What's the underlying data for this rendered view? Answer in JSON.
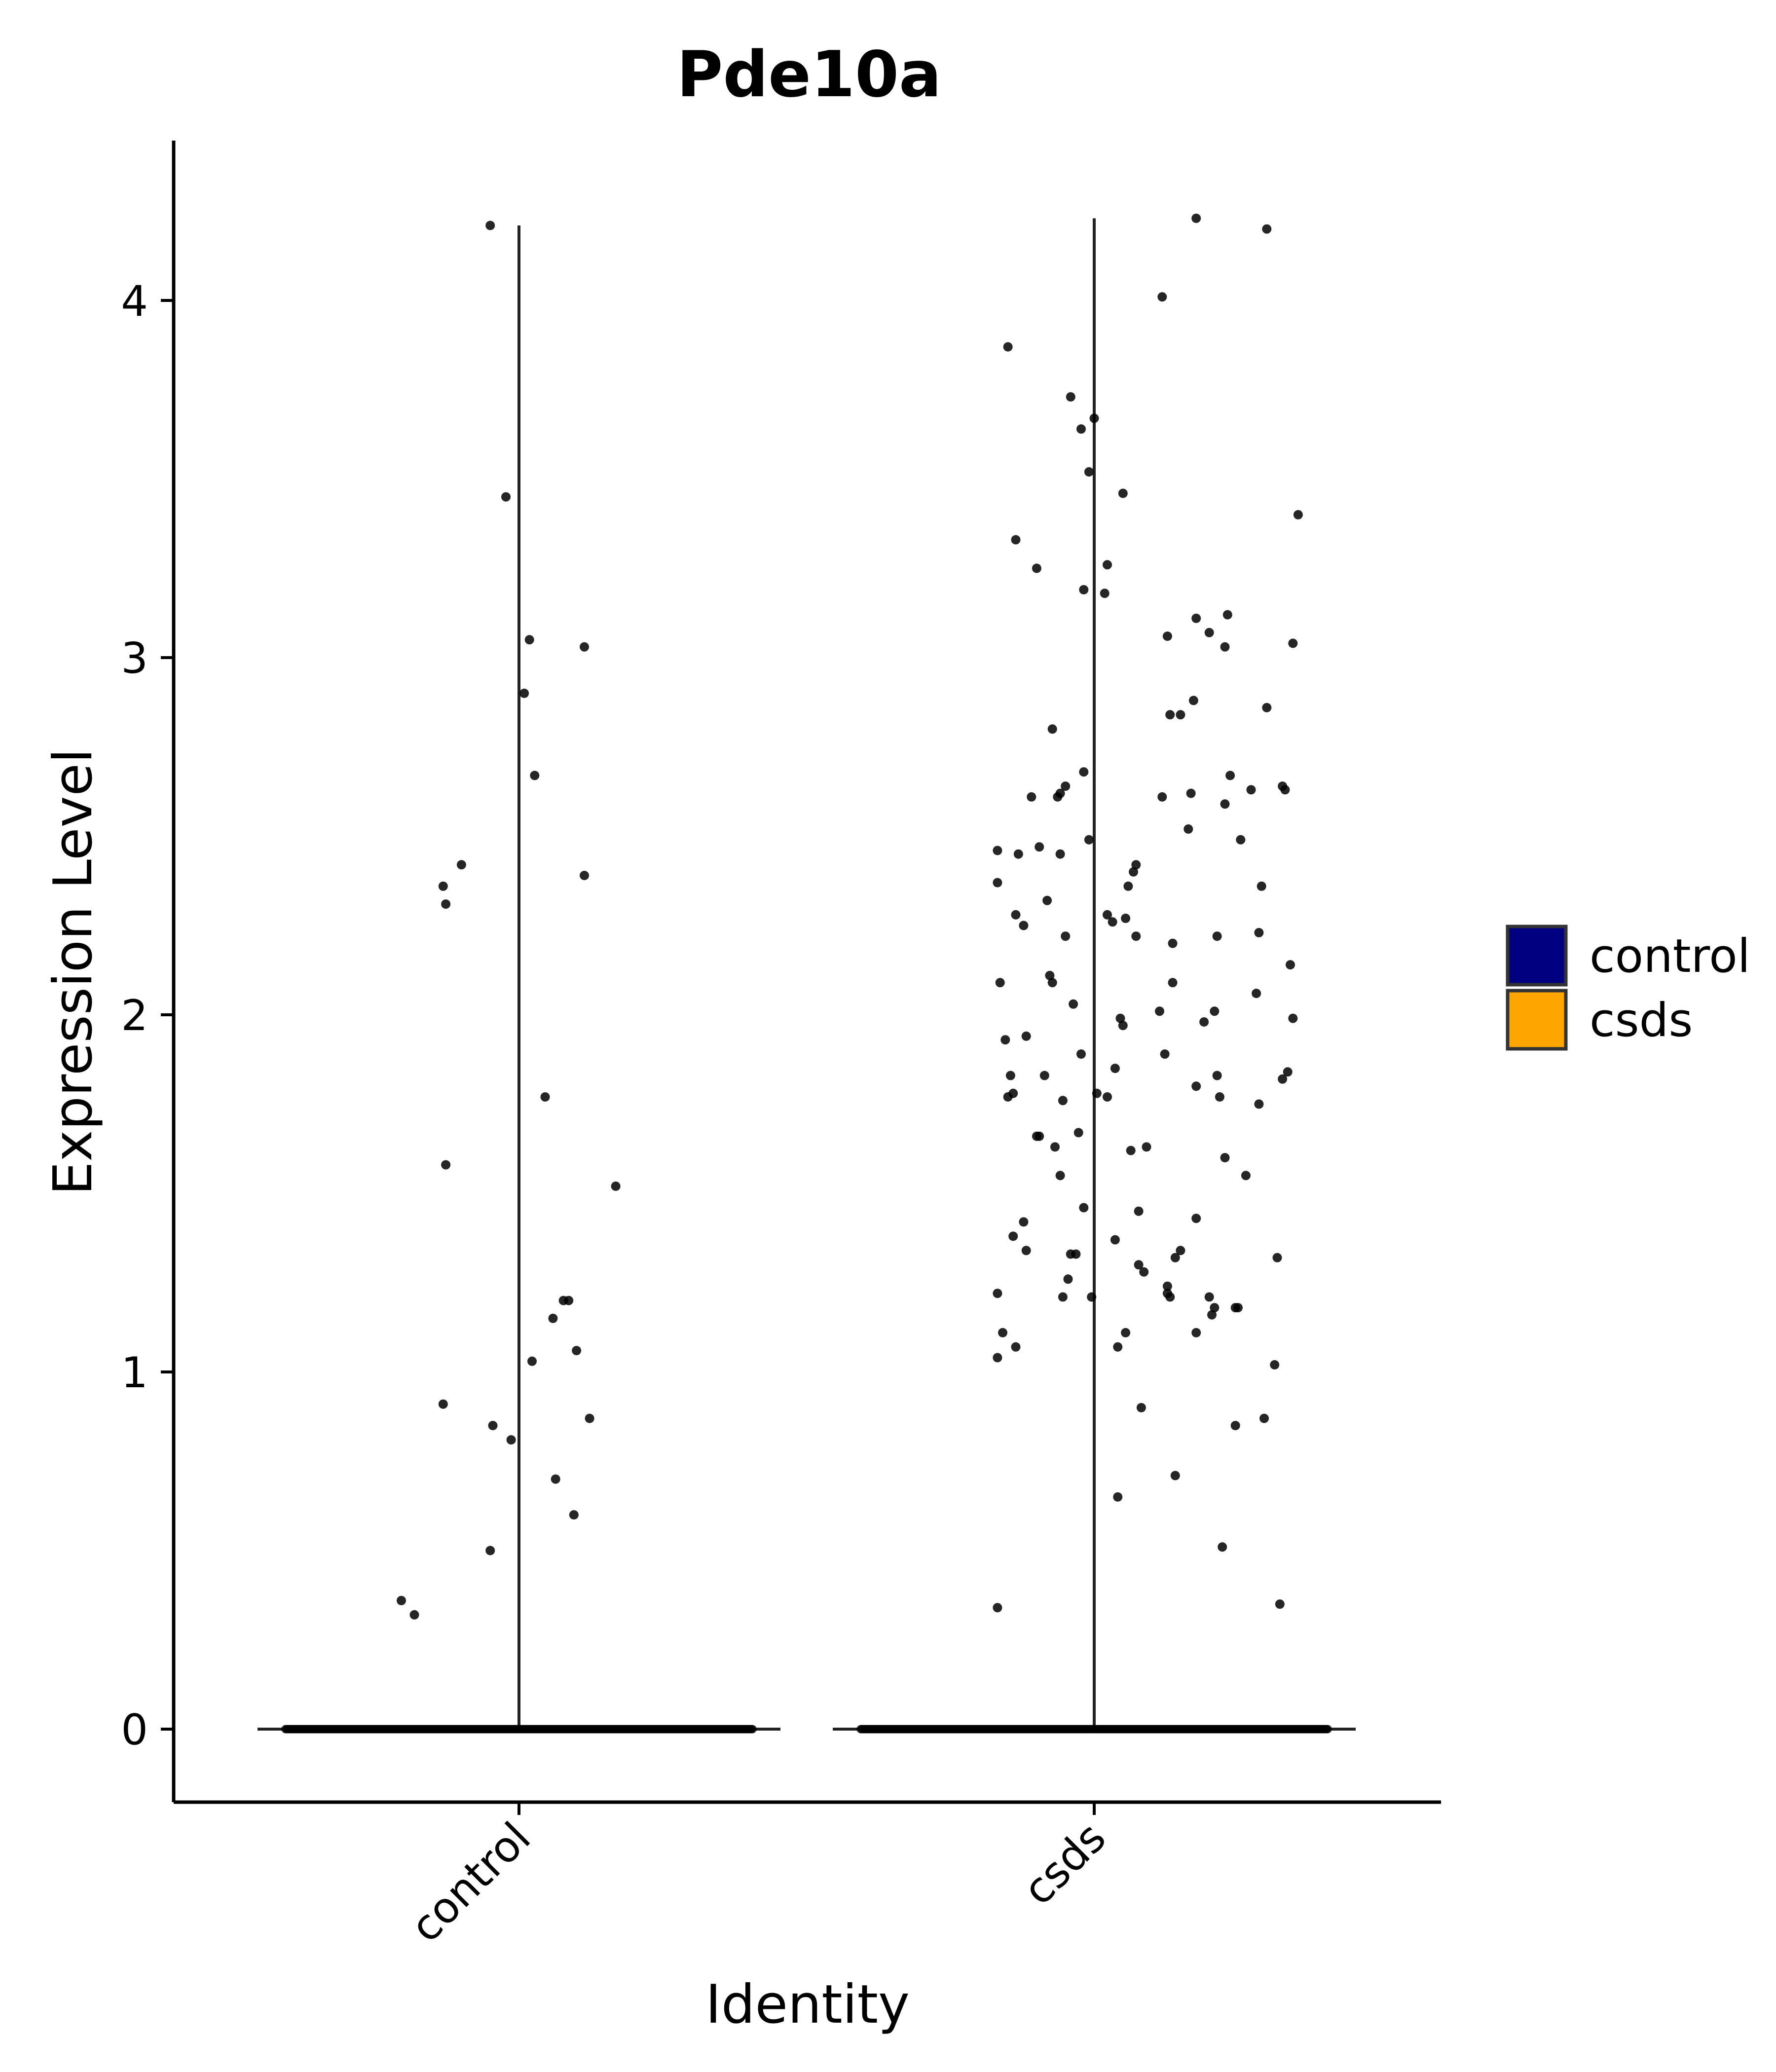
{
  "chart_data": {
    "type": "scatter",
    "subtype": "violin-jitter",
    "title": "Pde10a",
    "xlabel": "Identity",
    "ylabel": "Expression Level",
    "categories": [
      "control",
      "csds"
    ],
    "ylim": [
      -0.21,
      4.43
    ],
    "yticks": [
      0,
      1,
      2,
      3,
      4
    ],
    "grid": false,
    "legend": {
      "position": "right",
      "title": "",
      "items": [
        {
          "label": "control",
          "color": "#000080"
        },
        {
          "label": "csds",
          "color": "#FFA500"
        }
      ]
    },
    "violin_max": [
      4.21,
      4.23
    ],
    "series": [
      {
        "name": "control",
        "color": "#000080",
        "zero_count": 400,
        "points": [
          [
            -0.45,
            0.36
          ],
          [
            -0.4,
            0.32
          ],
          [
            -0.29,
            2.36
          ],
          [
            -0.28,
            2.31
          ],
          [
            -0.28,
            1.58
          ],
          [
            -0.29,
            0.91
          ],
          [
            -0.22,
            2.42
          ],
          [
            -0.11,
            4.21
          ],
          [
            -0.1,
            0.85
          ],
          [
            -0.11,
            0.5
          ],
          [
            -0.05,
            3.45
          ],
          [
            -0.03,
            0.81
          ],
          [
            0.02,
            2.9
          ],
          [
            0.04,
            3.05
          ],
          [
            0.05,
            1.03
          ],
          [
            0.06,
            2.67
          ],
          [
            0.1,
            1.77
          ],
          [
            0.13,
            1.15
          ],
          [
            0.14,
            0.7
          ],
          [
            0.17,
            1.2
          ],
          [
            0.19,
            1.2
          ],
          [
            0.21,
            0.6
          ],
          [
            0.22,
            1.06
          ],
          [
            0.25,
            3.03
          ],
          [
            0.25,
            2.39
          ],
          [
            0.27,
            0.87
          ],
          [
            0.37,
            1.52
          ]
        ]
      },
      {
        "name": "csds",
        "color": "#FFA500",
        "zero_count": 400,
        "points": [
          [
            -0.37,
            0.34
          ],
          [
            -0.37,
            1.04
          ],
          [
            -0.37,
            1.22
          ],
          [
            -0.35,
            1.11
          ],
          [
            -0.37,
            2.37
          ],
          [
            -0.37,
            2.46
          ],
          [
            -0.36,
            2.09
          ],
          [
            -0.34,
            1.93
          ],
          [
            -0.33,
            1.77
          ],
          [
            -0.33,
            3.87
          ],
          [
            -0.31,
            1.78
          ],
          [
            -0.32,
            1.83
          ],
          [
            -0.31,
            1.38
          ],
          [
            -0.3,
            1.07
          ],
          [
            -0.3,
            3.33
          ],
          [
            -0.3,
            2.28
          ],
          [
            -0.29,
            2.45
          ],
          [
            -0.27,
            1.42
          ],
          [
            -0.26,
            1.34
          ],
          [
            -0.26,
            1.94
          ],
          [
            -0.27,
            2.25
          ],
          [
            -0.24,
            2.61
          ],
          [
            -0.22,
            3.25
          ],
          [
            -0.22,
            1.66
          ],
          [
            -0.21,
            2.47
          ],
          [
            -0.21,
            1.66
          ],
          [
            -0.19,
            1.83
          ],
          [
            -0.18,
            2.32
          ],
          [
            -0.17,
            2.11
          ],
          [
            -0.16,
            2.09
          ],
          [
            -0.16,
            2.8
          ],
          [
            -0.15,
            1.63
          ],
          [
            -0.14,
            2.61
          ],
          [
            -0.13,
            2.62
          ],
          [
            -0.13,
            1.55
          ],
          [
            -0.13,
            2.45
          ],
          [
            -0.12,
            1.21
          ],
          [
            -0.12,
            1.76
          ],
          [
            -0.11,
            2.64
          ],
          [
            -0.11,
            2.22
          ],
          [
            -0.1,
            1.26
          ],
          [
            -0.09,
            1.33
          ],
          [
            -0.09,
            3.73
          ],
          [
            -0.08,
            2.03
          ],
          [
            -0.07,
            1.33
          ],
          [
            -0.06,
            1.67
          ],
          [
            -0.05,
            3.64
          ],
          [
            -0.04,
            2.68
          ],
          [
            -0.04,
            1.46
          ],
          [
            -0.05,
            1.89
          ],
          [
            -0.04,
            3.19
          ],
          [
            -0.02,
            2.49
          ],
          [
            -0.02,
            3.52
          ],
          [
            -0.01,
            1.21
          ],
          [
            0.0,
            3.67
          ],
          [
            0.01,
            1.78
          ],
          [
            0.04,
            3.18
          ],
          [
            0.05,
            1.77
          ],
          [
            0.05,
            2.28
          ],
          [
            0.05,
            3.26
          ],
          [
            0.07,
            2.26
          ],
          [
            0.08,
            1.85
          ],
          [
            0.08,
            1.37
          ],
          [
            0.09,
            0.65
          ],
          [
            0.09,
            1.07
          ],
          [
            0.1,
            1.99
          ],
          [
            0.11,
            1.97
          ],
          [
            0.12,
            2.27
          ],
          [
            0.11,
            3.46
          ],
          [
            0.12,
            1.11
          ],
          [
            0.13,
            2.36
          ],
          [
            0.14,
            1.62
          ],
          [
            0.15,
            2.4
          ],
          [
            0.16,
            2.42
          ],
          [
            0.16,
            2.22
          ],
          [
            0.17,
            1.45
          ],
          [
            0.17,
            1.3
          ],
          [
            0.18,
            0.9
          ],
          [
            0.19,
            1.28
          ],
          [
            0.2,
            1.63
          ],
          [
            0.25,
            2.01
          ],
          [
            0.26,
            2.61
          ],
          [
            0.26,
            4.01
          ],
          [
            0.27,
            1.89
          ],
          [
            0.28,
            1.24
          ],
          [
            0.28,
            3.06
          ],
          [
            0.28,
            1.22
          ],
          [
            0.29,
            1.21
          ],
          [
            0.29,
            2.84
          ],
          [
            0.3,
            2.2
          ],
          [
            0.3,
            2.09
          ],
          [
            0.31,
            0.71
          ],
          [
            0.31,
            1.32
          ],
          [
            0.33,
            1.34
          ],
          [
            0.33,
            2.84
          ],
          [
            0.36,
            2.52
          ],
          [
            0.37,
            2.62
          ],
          [
            0.38,
            2.88
          ],
          [
            0.39,
            1.43
          ],
          [
            0.39,
            1.8
          ],
          [
            0.39,
            1.11
          ],
          [
            0.39,
            4.23
          ],
          [
            0.39,
            3.11
          ],
          [
            0.42,
            1.98
          ],
          [
            0.44,
            1.21
          ],
          [
            0.44,
            3.07
          ],
          [
            0.45,
            1.16
          ],
          [
            0.46,
            1.18
          ],
          [
            0.46,
            2.01
          ],
          [
            0.47,
            1.83
          ],
          [
            0.47,
            2.22
          ],
          [
            0.48,
            1.77
          ],
          [
            0.49,
            0.51
          ],
          [
            0.5,
            1.6
          ],
          [
            0.5,
            2.59
          ],
          [
            0.5,
            3.03
          ],
          [
            0.51,
            3.12
          ],
          [
            0.52,
            2.67
          ],
          [
            0.54,
            0.85
          ],
          [
            0.54,
            1.18
          ],
          [
            0.55,
            1.18
          ],
          [
            0.56,
            2.49
          ],
          [
            0.58,
            1.55
          ],
          [
            0.6,
            2.63
          ],
          [
            0.62,
            2.06
          ],
          [
            0.63,
            2.23
          ],
          [
            0.63,
            1.75
          ],
          [
            0.64,
            2.36
          ],
          [
            0.65,
            0.87
          ],
          [
            0.66,
            2.86
          ],
          [
            0.66,
            4.2
          ],
          [
            0.69,
            1.02
          ],
          [
            0.7,
            1.32
          ],
          [
            0.71,
            0.35
          ],
          [
            0.72,
            1.82
          ],
          [
            0.72,
            2.64
          ],
          [
            0.73,
            2.63
          ],
          [
            0.74,
            1.84
          ],
          [
            0.75,
            2.14
          ],
          [
            0.76,
            1.99
          ],
          [
            0.76,
            3.04
          ],
          [
            0.78,
            3.4
          ]
        ]
      }
    ]
  }
}
